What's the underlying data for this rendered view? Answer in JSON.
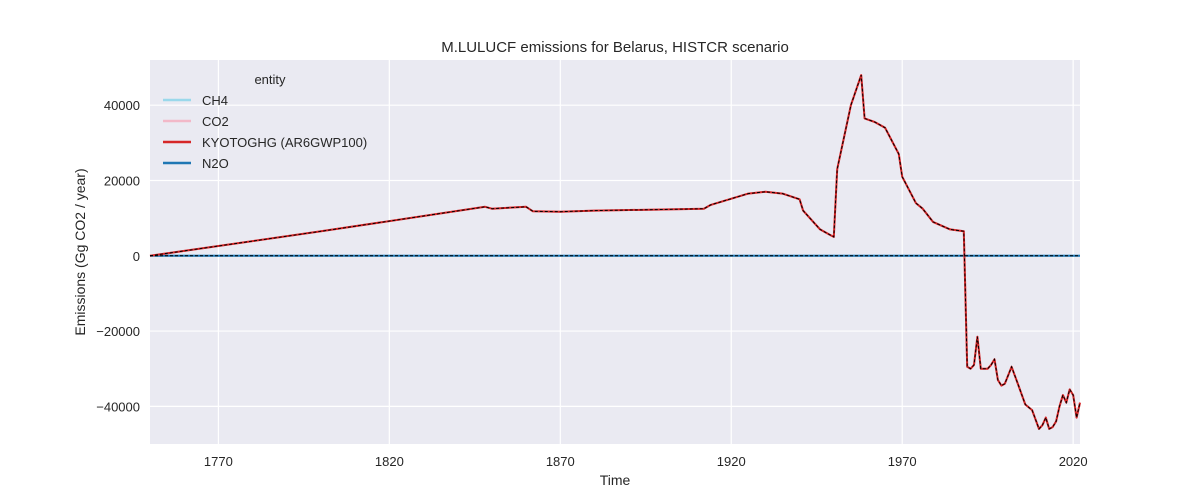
{
  "chart_data": {
    "type": "line",
    "title": "M.LULUCF emissions for Belarus, HISTCR scenario",
    "xlabel": "Time",
    "ylabel": "Emissions (Gg CO2 / year)",
    "xlim": [
      1750,
      2022
    ],
    "ylim": [
      -50000,
      52000
    ],
    "x_ticks": [
      1770,
      1820,
      1870,
      1920,
      1970,
      2020
    ],
    "y_ticks": [
      -40000,
      -20000,
      0,
      20000,
      40000
    ],
    "x_tick_labels": [
      "1770",
      "1820",
      "1870",
      "1920",
      "1970",
      "2020"
    ],
    "y_tick_labels": [
      "−40000",
      "−20000",
      "0",
      "20000",
      "40000"
    ],
    "grid": true,
    "background": "#eaeaf2",
    "legend": {
      "title": "entity",
      "placement": "top-left",
      "entries": [
        {
          "name": "CH4",
          "color": "#9ad8eb"
        },
        {
          "name": "CO2",
          "color": "#f2b8c8"
        },
        {
          "name": "KYOTOGHG (AR6GWP100)",
          "color": "#d62728"
        },
        {
          "name": "N2O",
          "color": "#1f77b4"
        }
      ]
    },
    "series": [
      {
        "name": "CH4",
        "color": "#9ad8eb",
        "style": "solid",
        "x": [
          1750,
          2022
        ],
        "y": [
          0,
          0
        ]
      },
      {
        "name": "N2O",
        "color": "#1f77b4",
        "style": "solid",
        "x": [
          1750,
          2022
        ],
        "y": [
          0,
          0
        ]
      },
      {
        "name": "CO2",
        "color": "#f2b8c8",
        "style": "solid",
        "x": [
          1750,
          1800,
          1848,
          1850,
          1860,
          1862,
          1870,
          1880,
          1900,
          1912,
          1914,
          1925,
          1930,
          1935,
          1940,
          1941,
          1944,
          1946,
          1949,
          1950,
          1951,
          1955,
          1958,
          1959,
          1962,
          1965,
          1969,
          1970,
          1974,
          1976,
          1979,
          1984,
          1988,
          1989,
          1990,
          1991,
          1992,
          1993,
          1995,
          1996,
          1997,
          1998,
          1999,
          2000,
          2002,
          2004,
          2006,
          2008,
          2010,
          2011,
          2012,
          2013,
          2014,
          2015,
          2016,
          2017,
          2018,
          2019,
          2020,
          2021,
          2022
        ],
        "y": [
          0,
          6500,
          13000,
          12500,
          13000,
          11800,
          11700,
          12000,
          12300,
          12500,
          13500,
          16500,
          17000,
          16500,
          15000,
          12000,
          9000,
          7000,
          5500,
          5000,
          23000,
          40000,
          48000,
          36500,
          35500,
          34000,
          27000,
          21000,
          14000,
          12500,
          9000,
          7000,
          6500,
          -29500,
          -30000,
          -29000,
          -21500,
          -30000,
          -30000,
          -29000,
          -27500,
          -33000,
          -34500,
          -34000,
          -29500,
          -34500,
          -39500,
          -41000,
          -46000,
          -45000,
          -43000,
          -46000,
          -45500,
          -44000,
          -40000,
          -37000,
          -39000,
          -35500,
          -37000,
          -43000,
          -39000
        ]
      },
      {
        "name": "KYOTOGHG (AR6GWP100)",
        "color": "#d62728",
        "style": "solid",
        "x": [
          1750,
          1800,
          1848,
          1850,
          1860,
          1862,
          1870,
          1880,
          1900,
          1912,
          1914,
          1925,
          1930,
          1935,
          1940,
          1941,
          1944,
          1946,
          1949,
          1950,
          1951,
          1955,
          1958,
          1959,
          1962,
          1965,
          1969,
          1970,
          1974,
          1976,
          1979,
          1984,
          1988,
          1989,
          1990,
          1991,
          1992,
          1993,
          1995,
          1996,
          1997,
          1998,
          1999,
          2000,
          2002,
          2004,
          2006,
          2008,
          2010,
          2011,
          2012,
          2013,
          2014,
          2015,
          2016,
          2017,
          2018,
          2019,
          2020,
          2021,
          2022
        ],
        "y": [
          0,
          6500,
          13000,
          12500,
          13000,
          11800,
          11700,
          12000,
          12300,
          12500,
          13500,
          16500,
          17000,
          16500,
          15000,
          12000,
          9000,
          7000,
          5500,
          5000,
          23000,
          40000,
          48000,
          36500,
          35500,
          34000,
          27000,
          21000,
          14000,
          12500,
          9000,
          7000,
          6500,
          -29500,
          -30000,
          -29000,
          -21500,
          -30000,
          -30000,
          -29000,
          -27500,
          -33000,
          -34500,
          -34000,
          -29500,
          -34500,
          -39500,
          -41000,
          -46000,
          -45000,
          -43000,
          -46000,
          -45500,
          -44000,
          -40000,
          -37000,
          -39000,
          -35500,
          -37000,
          -43000,
          -39000
        ]
      }
    ],
    "overlays": [
      {
        "of": "KYOTOGHG (AR6GWP100)",
        "color": "#000000",
        "style": "dashed"
      },
      {
        "of": "N2O",
        "color": "#000000",
        "style": "dashed"
      }
    ]
  }
}
